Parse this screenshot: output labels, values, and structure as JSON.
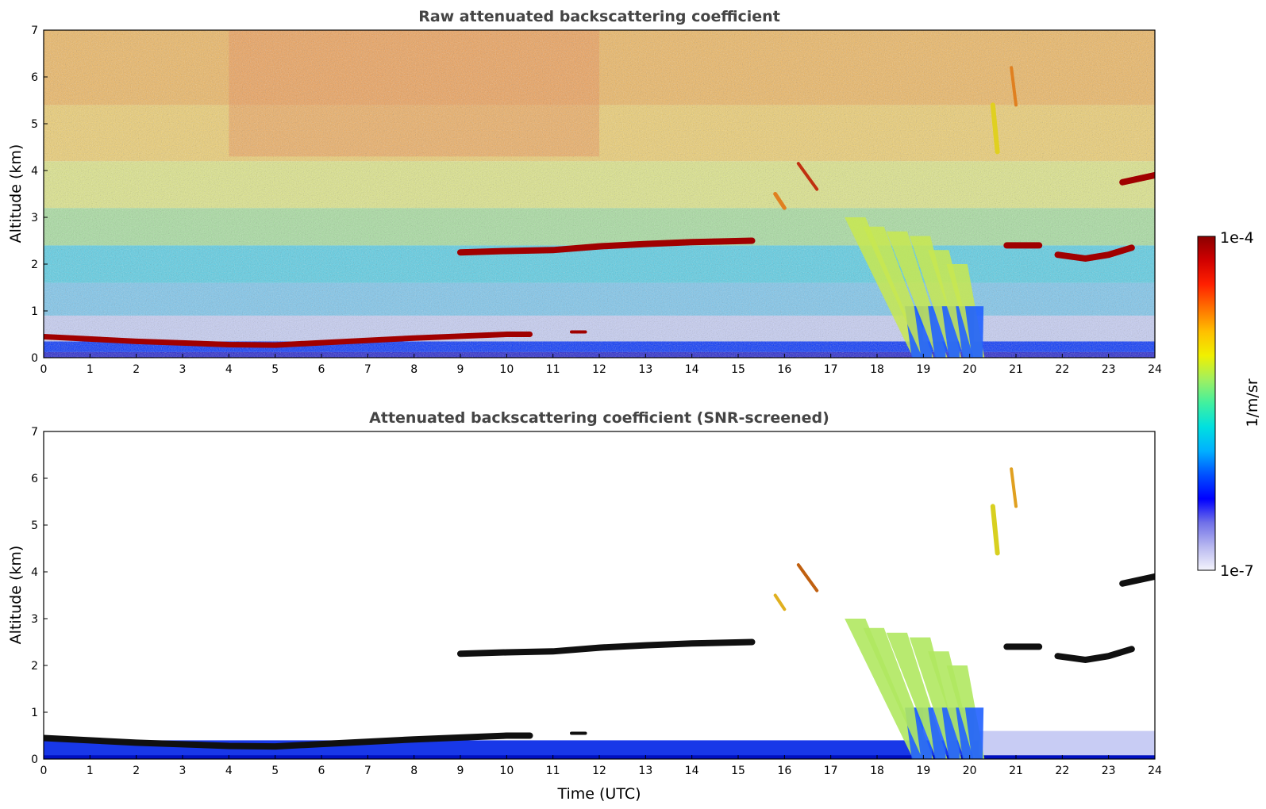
{
  "chart_data": [
    {
      "type": "heatmap",
      "title": "Raw attenuated backscattering coefficient",
      "xlabel": "",
      "ylabel": "Altitude (km)",
      "xlim": [
        0,
        24
      ],
      "ylim": [
        0,
        7
      ],
      "xticks": [
        "0",
        "1",
        "2",
        "3",
        "4",
        "5",
        "6",
        "7",
        "8",
        "9",
        "10",
        "11",
        "12",
        "13",
        "14",
        "15",
        "16",
        "17",
        "18",
        "19",
        "20",
        "21",
        "22",
        "23",
        "24"
      ],
      "yticks": [
        "0",
        "1",
        "2",
        "3",
        "4",
        "5",
        "6",
        "7"
      ],
      "features": [
        {
          "name": "Boundary layer top",
          "x": [
            0,
            2,
            4,
            5,
            6,
            8,
            10,
            10.5
          ],
          "y": [
            0.45,
            0.35,
            0.28,
            0.27,
            0.32,
            0.42,
            0.5,
            0.5
          ],
          "level": "high"
        },
        {
          "name": "Mid-level cloud layer",
          "x": [
            9,
            10,
            11,
            12,
            13,
            14,
            15.3
          ],
          "y": [
            2.25,
            2.28,
            2.3,
            2.38,
            2.43,
            2.47,
            2.5
          ],
          "level": "high"
        },
        {
          "name": "Cloud patch",
          "x": [
            20.8,
            21.5
          ],
          "y": [
            2.4,
            2.4
          ],
          "level": "high"
        },
        {
          "name": "Cloud patch",
          "x": [
            21.9,
            22.5,
            23,
            23.5
          ],
          "y": [
            2.2,
            2.12,
            2.2,
            2.35
          ],
          "level": "high"
        },
        {
          "name": "Cloud patch",
          "x": [
            23.3,
            24
          ],
          "y": [
            3.75,
            3.9
          ],
          "level": "high"
        },
        {
          "name": "Precipitation shafts",
          "x": [
            17.2,
            20.2
          ],
          "y": [
            0,
            3.0
          ],
          "level": "medium"
        },
        {
          "name": "Cirrus fallstreaks",
          "x": [
            20.5,
            21.0
          ],
          "y": [
            4.5,
            6.2
          ],
          "level": "medium"
        }
      ]
    },
    {
      "type": "heatmap",
      "title": "Attenuated backscattering coefficient (SNR-screened)",
      "xlabel": "Time (UTC)",
      "ylabel": "Altitude (km)",
      "xlim": [
        0,
        24
      ],
      "ylim": [
        0,
        7
      ],
      "xticks": [
        "0",
        "1",
        "2",
        "3",
        "4",
        "5",
        "6",
        "7",
        "8",
        "9",
        "10",
        "11",
        "12",
        "13",
        "14",
        "15",
        "16",
        "17",
        "18",
        "19",
        "20",
        "21",
        "22",
        "23",
        "24"
      ],
      "yticks": [
        "0",
        "1",
        "2",
        "3",
        "4",
        "5",
        "6",
        "7"
      ]
    }
  ],
  "colorbar": {
    "label": "1/m/sr",
    "max_label": "1e-4",
    "min_label": "1e-7",
    "scale": "log",
    "colors": [
      "#f4f4fc",
      "#b8b8f0",
      "#7070e8",
      "#0000ff",
      "#0050ff",
      "#00b0ff",
      "#00e0e0",
      "#40f0a0",
      "#a0f060",
      "#f0f000",
      "#ffc000",
      "#ff7000",
      "#ff2000",
      "#d00000",
      "#8b0000"
    ]
  }
}
